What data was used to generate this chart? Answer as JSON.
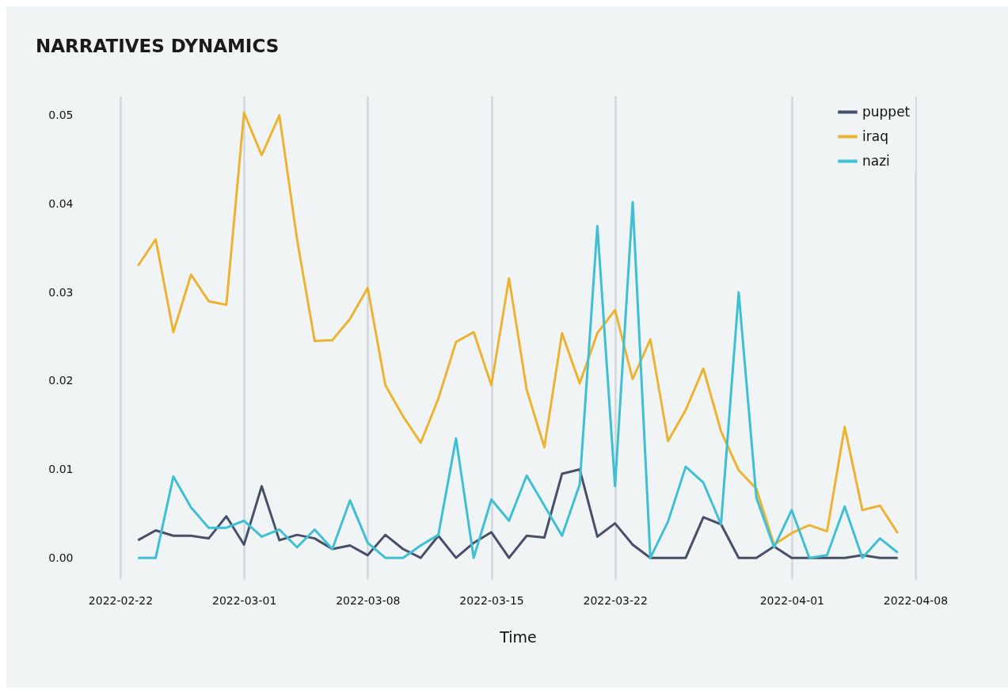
{
  "chart_data": {
    "type": "line",
    "title": "NARRATIVES DYNAMICS",
    "xlabel": "Time",
    "x": [
      "2022-02-23",
      "2022-02-24",
      "2022-02-25",
      "2022-02-26",
      "2022-02-27",
      "2022-02-28",
      "2022-03-01",
      "2022-03-02",
      "2022-03-03",
      "2022-03-04",
      "2022-03-05",
      "2022-03-06",
      "2022-03-07",
      "2022-03-08",
      "2022-03-09",
      "2022-03-10",
      "2022-03-11",
      "2022-03-12",
      "2022-03-13",
      "2022-03-14",
      "2022-03-15",
      "2022-03-16",
      "2022-03-17",
      "2022-03-18",
      "2022-03-19",
      "2022-03-20",
      "2022-03-21",
      "2022-03-22",
      "2022-03-23",
      "2022-03-24",
      "2022-03-25",
      "2022-03-26",
      "2022-03-27",
      "2022-03-28",
      "2022-03-29",
      "2022-03-30",
      "2022-03-31",
      "2022-04-01",
      "2022-04-02",
      "2022-04-03",
      "2022-04-04",
      "2022-04-05",
      "2022-04-06",
      "2022-04-07"
    ],
    "series": [
      {
        "name": "puppet",
        "color": "#475069",
        "values": [
          0.002,
          0.0031,
          0.0025,
          0.0025,
          0.0022,
          0.0047,
          0.0015,
          0.0081,
          0.002,
          0.0026,
          0.0022,
          0.001,
          0.0014,
          0.0003,
          0.0026,
          0.001,
          0,
          0.0025,
          0,
          0.0017,
          0.0029,
          0,
          0.0025,
          0.0023,
          0.0095,
          0.01,
          0.0024,
          0.0039,
          0.0015,
          0,
          0,
          0,
          0.0046,
          0.0038,
          0,
          0,
          0.0013,
          0,
          0,
          0,
          0,
          0.0003,
          0,
          0
        ]
      },
      {
        "name": "iraq",
        "color": "#ecb332",
        "values": [
          0.033,
          0.036,
          0.0255,
          0.032,
          0.029,
          0.0286,
          0.0503,
          0.0455,
          0.05,
          0.036,
          0.0245,
          0.0246,
          0.027,
          0.0305,
          0.0195,
          0.016,
          0.013,
          0.018,
          0.0244,
          0.0255,
          0.0195,
          0.0316,
          0.019,
          0.0125,
          0.0254,
          0.0197,
          0.0254,
          0.028,
          0.0202,
          0.0247,
          0.0132,
          0.0167,
          0.0214,
          0.0143,
          0.0099,
          0.0078,
          0.0015,
          0.0028,
          0.0037,
          0.003,
          0.0148,
          0.0054,
          0.0059,
          0.0028
        ]
      },
      {
        "name": "nazi",
        "color": "#3fbfd3",
        "values": [
          0,
          0,
          0.0092,
          0.0057,
          0.0034,
          0.0034,
          0.0042,
          0.0024,
          0.0032,
          0.0012,
          0.0032,
          0.001,
          0.0065,
          0.0017,
          0,
          0,
          0.0014,
          0.0026,
          0.0135,
          0,
          0.0066,
          0.0042,
          0.0093,
          0.0059,
          0.0025,
          0.0083,
          0.0375,
          0.0081,
          0.0402,
          0,
          0.0041,
          0.0103,
          0.0085,
          0.0038,
          0.03,
          0.0068,
          0.0012,
          0.0054,
          0,
          0.0003,
          0.0058,
          0,
          0.0022,
          0.0006
        ]
      }
    ],
    "xlim": [
      "2022-02-22",
      "2022-04-08"
    ],
    "xticks": [
      "2022-02-22",
      "2022-03-01",
      "2022-03-08",
      "2022-03-15",
      "2022-03-22",
      "2022-04-01",
      "2022-04-08"
    ],
    "ylim": [
      -0.0024,
      0.0522
    ],
    "yticks": [
      {
        "value": 0,
        "label": "0.00"
      },
      {
        "value": 0.01,
        "label": "0.01"
      },
      {
        "value": 0.02,
        "label": "0.02"
      },
      {
        "value": 0.03,
        "label": "0.03"
      },
      {
        "value": 0.04,
        "label": "0.04"
      },
      {
        "value": 0.05,
        "label": "0.05"
      }
    ],
    "grid": "x",
    "legend": "top right"
  }
}
